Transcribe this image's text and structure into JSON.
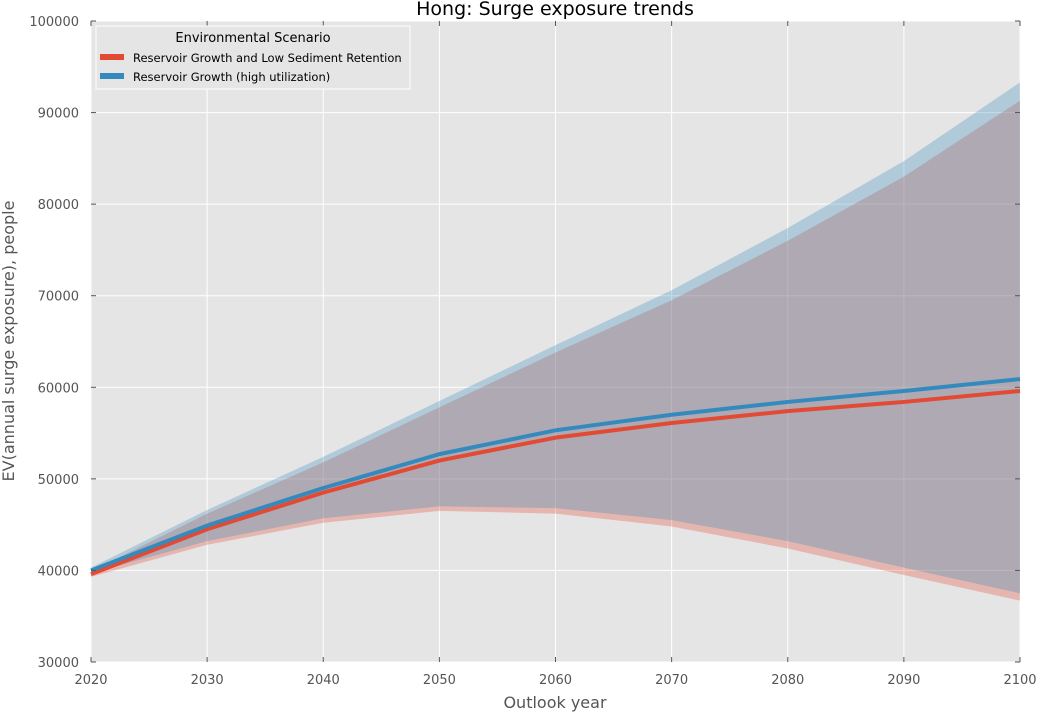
{
  "chart_data": {
    "type": "line",
    "title": "Hong: Surge exposure trends",
    "xlabel": "Outlook year",
    "ylabel": "EV(annual surge exposure), people",
    "xlim": [
      2020,
      2100
    ],
    "ylim": [
      30000,
      100000
    ],
    "x_ticks": [
      2020,
      2030,
      2040,
      2050,
      2060,
      2070,
      2080,
      2090,
      2100
    ],
    "y_ticks": [
      30000,
      40000,
      50000,
      60000,
      70000,
      80000,
      90000,
      100000
    ],
    "grid": true,
    "background": "#e5e5e5",
    "legend": {
      "title": "Environmental Scenario",
      "placement": "top-left"
    },
    "x": [
      2020,
      2030,
      2040,
      2050,
      2060,
      2070,
      2080,
      2090,
      2100
    ],
    "series": [
      {
        "name": "Reservoir Growth and Low Sediment Retention",
        "color": "#e24a33",
        "values": [
          39600,
          44500,
          48500,
          52000,
          54500,
          56100,
          57400,
          58400,
          59600
        ],
        "band_lower": [
          39300,
          42800,
          45200,
          46500,
          46200,
          44800,
          42400,
          39500,
          36700
        ],
        "band_upper": [
          39900,
          46200,
          51800,
          57800,
          63800,
          69500,
          76000,
          83000,
          91300
        ]
      },
      {
        "name": "Reservoir Growth (high utilization)",
        "color": "#348abd",
        "values": [
          40000,
          44900,
          49000,
          52700,
          55300,
          57000,
          58400,
          59600,
          60900
        ],
        "band_lower": [
          39700,
          43200,
          45700,
          47000,
          46800,
          45500,
          43200,
          40300,
          37500
        ],
        "band_upper": [
          40300,
          46600,
          52400,
          58500,
          64600,
          70600,
          77400,
          84700,
          93300
        ]
      }
    ]
  }
}
